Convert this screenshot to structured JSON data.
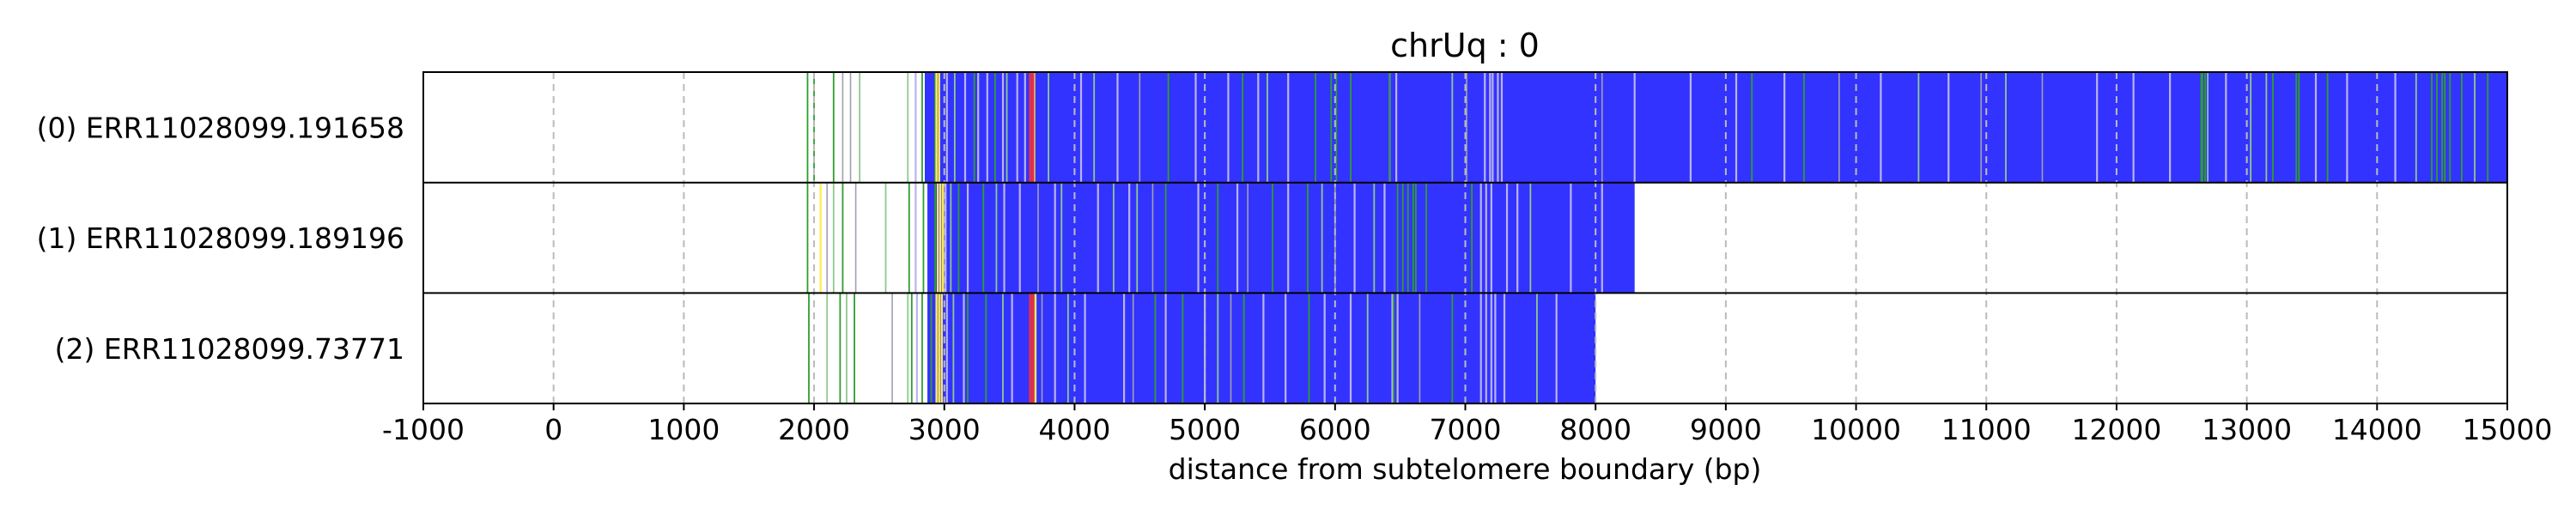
{
  "chart_data": {
    "type": "bar",
    "title": "chrUq : 0",
    "xlabel": "distance from subtelomere boundary (bp)",
    "ylabel": "",
    "xlim": [
      -1000,
      15000
    ],
    "xticks": [
      -1000,
      0,
      1000,
      2000,
      3000,
      4000,
      5000,
      6000,
      7000,
      8000,
      9000,
      10000,
      11000,
      12000,
      13000,
      14000,
      15000
    ],
    "grid": "x-dashed",
    "colors": {
      "background": "#ffffff",
      "main_fill": "#3333ff",
      "green_line": "#2e9e2e",
      "light_green_line": "#8fc98f",
      "lavender_line": "#b9b3f0",
      "gray_line": "#a0a0b0",
      "yellow_line": "#ffee55",
      "red_line": "#e0304a",
      "grid": "#bbbbbb"
    },
    "reads": [
      {
        "label": "(0) ERR11028099.191658",
        "fill_range": [
          2850,
          15000
        ],
        "green": [
          1950,
          2000,
          2150,
          2830,
          2930,
          3230,
          3390,
          4720,
          5290,
          5850,
          5970,
          6010,
          6120,
          6420,
          9200,
          9600,
          12650,
          12660,
          12680,
          13200,
          13380,
          13400,
          13620,
          14420,
          14460,
          14500,
          14520,
          14560,
          14650,
          14850
        ],
        "light_green": [
          2350,
          2720,
          3080,
          3480,
          3800,
          4150,
          5480,
          6900,
          10480,
          11150,
          12700,
          13030,
          13150,
          14300,
          14750
        ],
        "lavender": [
          2780,
          3020,
          3160,
          3260,
          3330,
          3450,
          3560,
          3620,
          4050,
          4330,
          4930,
          5180,
          5410,
          5640,
          6420,
          6470,
          7150,
          7190,
          7210,
          7250,
          7280,
          8300,
          8730,
          9080,
          9450,
          10190,
          10710,
          11850,
          12130,
          12410,
          12840,
          13530,
          13770,
          14140
        ],
        "gray": [
          2220,
          2280,
          3680,
          4500,
          7010,
          8050,
          9870,
          10960,
          11430
        ],
        "yellow": [
          2940,
          2960,
          3690
        ],
        "red": [
          3660,
          3680
        ]
      },
      {
        "label": "(1) ERR11028099.189196",
        "fill_range": [
          2870,
          8300
        ],
        "green": [
          1950,
          2220,
          2730,
          2840,
          2930,
          3110,
          3300,
          4700,
          5100,
          5520,
          5790,
          6480,
          6520,
          6560,
          6600,
          6620,
          6700,
          7050
        ],
        "light_green": [
          2150,
          2550,
          3050,
          3400,
          3900,
          4300,
          4480,
          5900,
          6300,
          7500
        ],
        "lavender": [
          2780,
          3010,
          3180,
          3460,
          3580,
          3850,
          4180,
          4420,
          4950,
          5250,
          5640,
          6150,
          6380,
          7120,
          7160,
          7200,
          7320,
          7400,
          7810,
          8050
        ],
        "gray": [
          2100,
          2320,
          3720,
          4600,
          5330,
          6000
        ],
        "yellow": [
          2050,
          2950,
          2970,
          2990
        ],
        "red": []
      },
      {
        "label": "(2) ERR11028099.73771",
        "fill_range": [
          2870,
          8000
        ],
        "green": [
          1960,
          2200,
          2310,
          2750,
          2830,
          2900,
          3180,
          3320,
          4620,
          4830,
          5300,
          5800,
          6450,
          6900
        ],
        "light_green": [
          2100,
          2250,
          2720,
          3070,
          3450,
          3950,
          5100,
          6250,
          7550
        ],
        "lavender": [
          2790,
          3020,
          3150,
          3520,
          3850,
          4080,
          4380,
          4700,
          5000,
          5450,
          5620,
          5920,
          6120,
          6440,
          6480,
          7120,
          7160,
          7200,
          7230,
          7300,
          7700
        ],
        "gray": [
          2600,
          3750,
          4450,
          5200,
          6650
        ],
        "yellow": [
          2940,
          2960,
          2980,
          3700
        ],
        "red": [
          3660,
          3680
        ]
      }
    ]
  }
}
